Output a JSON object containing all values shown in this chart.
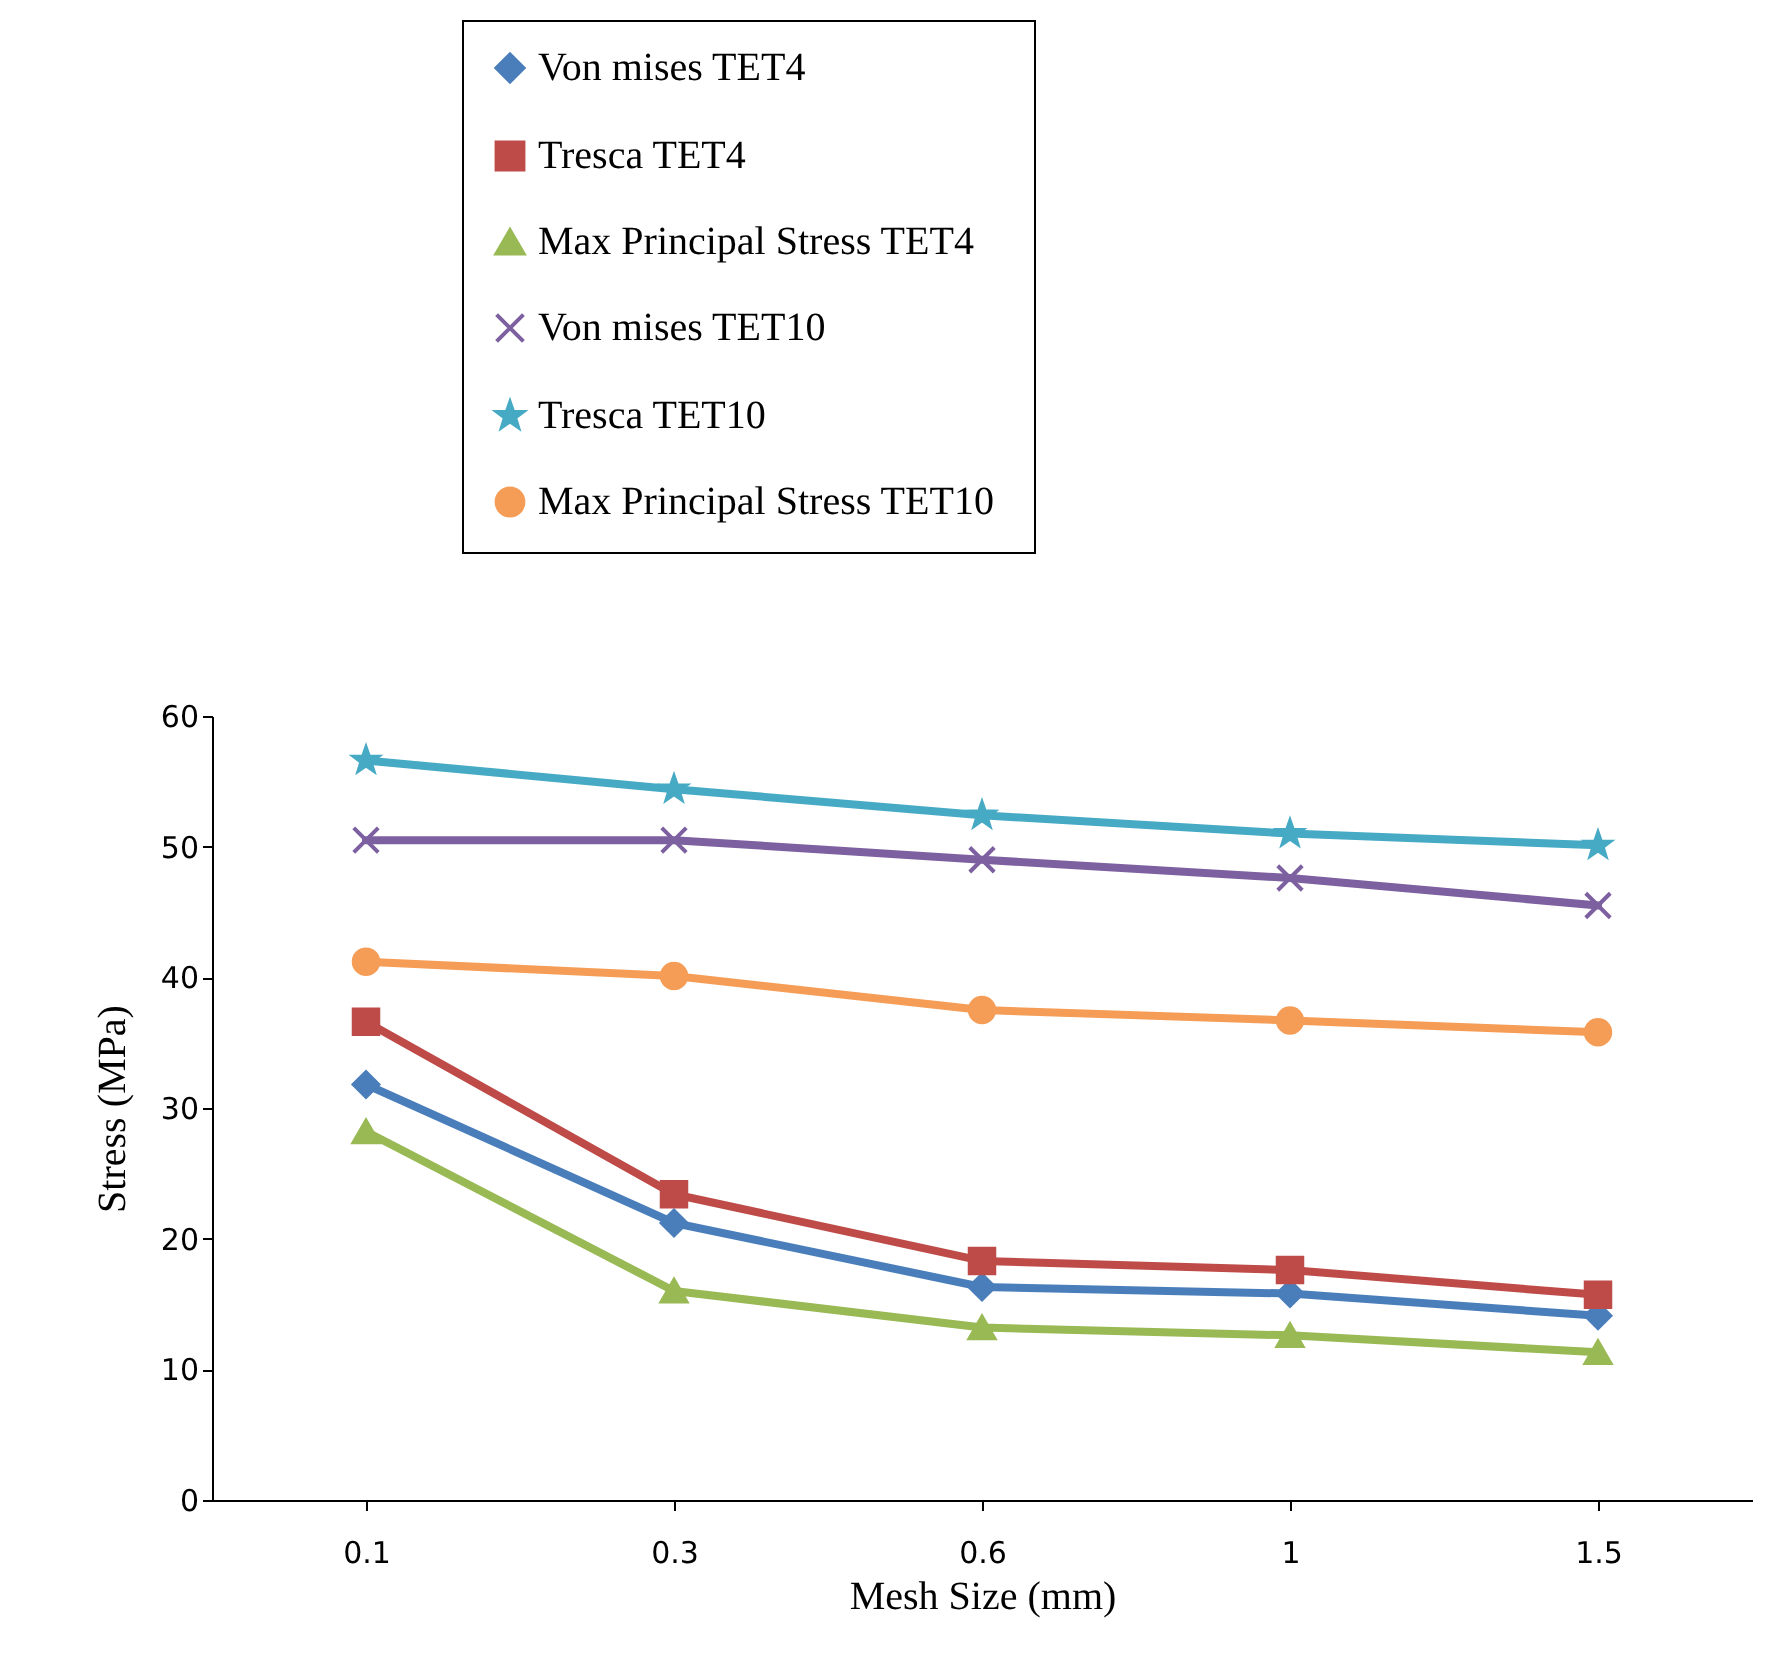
{
  "chart_data": {
    "type": "line",
    "xlabel": "Mesh Size (mm)",
    "ylabel": "Stress (MPa)",
    "categories": [
      "0.1",
      "0.3",
      "0.6",
      "1",
      "1.5"
    ],
    "series": [
      {
        "name": "Von mises  TET4",
        "color": "#4a7ebb",
        "marker": "diamond",
        "values": [
          31.8,
          21.2,
          16.3,
          15.8,
          14.1
        ]
      },
      {
        "name": "Tresca  TET4",
        "color": "#be4b48",
        "marker": "square",
        "values": [
          36.6,
          23.4,
          18.3,
          17.6,
          15.7
        ]
      },
      {
        "name": "Max Principal  Stress TET4",
        "color": "#98b954",
        "marker": "triangle",
        "values": [
          28.2,
          16.0,
          13.2,
          12.6,
          11.3
        ]
      },
      {
        "name": "Von mises  TET10",
        "color": "#7d60a0",
        "marker": "cross",
        "values": [
          50.5,
          50.5,
          49.0,
          47.6,
          45.5
        ]
      },
      {
        "name": "Tresca  TET10",
        "color": "#46aac5",
        "marker": "star",
        "values": [
          56.6,
          54.4,
          52.4,
          51.0,
          50.1
        ]
      },
      {
        "name": "Max Principal  Stress TET10",
        "color": "#f59d56",
        "marker": "circle",
        "values": [
          41.2,
          40.1,
          37.5,
          36.7,
          35.8
        ]
      }
    ],
    "ylim": [
      0,
      60
    ],
    "yticks": [
      0,
      10,
      20,
      30,
      40,
      50,
      60
    ],
    "grid": false,
    "legend": "top"
  }
}
